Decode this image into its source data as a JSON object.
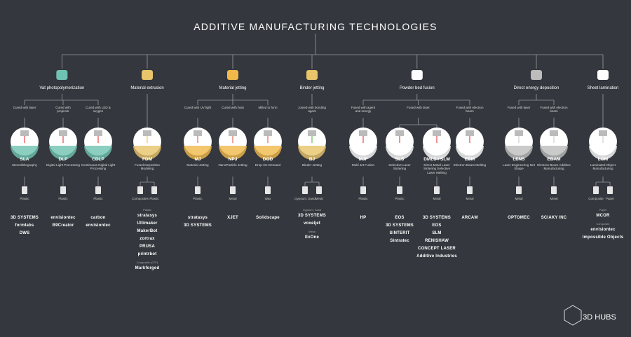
{
  "title": "ADDITIVE MANUFACTURING TECHNOLOGIES",
  "logo": "3D HUBS",
  "categories": [
    {
      "name": "Vat photopolymerization",
      "branches": [
        {
          "label": "Cured with laser",
          "techniques": [
            {
              "name": "SLA",
              "description": "Stereolithography",
              "materials": [
                "Plastic"
              ],
              "brand_groups": [
                {
                  "brands": [
                    "3D SYSTEMS",
                    "formlabs",
                    "DWS"
                  ]
                }
              ]
            }
          ]
        },
        {
          "label": "Cured with projector",
          "techniques": [
            {
              "name": "DLP",
              "description": "Digital Light Processing",
              "materials": [
                "Plastic"
              ],
              "brand_groups": [
                {
                  "brands": [
                    "envisiontec",
                    "B9Creator"
                  ]
                }
              ]
            }
          ]
        },
        {
          "label": "Cured with LED & oxygen",
          "techniques": [
            {
              "name": "CDLP",
              "description": "Continuous Digital Light Processing",
              "materials": [
                "Plastic"
              ],
              "brand_groups": [
                {
                  "brands": [
                    "carbon",
                    "envisiontec"
                  ]
                }
              ]
            }
          ]
        }
      ]
    },
    {
      "name": "Material extrusion",
      "branches": [
        {
          "techniques": [
            {
              "name": "FDM",
              "description": "Fused Deposition Modeling",
              "materials": [
                "Composites",
                "Plastic"
              ],
              "brand_groups": [
                {
                  "label": "Plastic",
                  "brands": [
                    "stratasys",
                    "Ultimaker",
                    "MakerBot",
                    "zortrax",
                    "PRUSA",
                    "printrbot"
                  ]
                },
                {
                  "label": "Composite (CFF)",
                  "brands": [
                    "Markforged"
                  ]
                }
              ]
            }
          ]
        }
      ]
    },
    {
      "name": "Material jetting",
      "branches": [
        {
          "label": "Cured with UV light",
          "techniques": [
            {
              "name": "MJ",
              "description": "Material Jetting",
              "materials": [
                "Plastic"
              ],
              "brand_groups": [
                {
                  "brands": [
                    "stratasys",
                    "3D SYSTEMS"
                  ]
                }
              ]
            }
          ]
        },
        {
          "label": "Cured with heat",
          "techniques": [
            {
              "name": "NPJ",
              "description": "NanoParticle Jetting",
              "materials": [
                "Metal"
              ],
              "brand_groups": [
                {
                  "brands": [
                    "XJET"
                  ]
                }
              ]
            }
          ]
        },
        {
          "label": "Milled to form",
          "techniques": [
            {
              "name": "DOD",
              "description": "Drop-On Demand",
              "materials": [
                "Wax"
              ],
              "brand_groups": [
                {
                  "brands": [
                    "Solidscape"
                  ]
                }
              ]
            }
          ]
        }
      ]
    },
    {
      "name": "Binder jetting",
      "branches": [
        {
          "label": "Joined with bonding agent",
          "techniques": [
            {
              "name": "BJ",
              "description": "Binder Jetting",
              "materials": [
                "Gypsum, Sand",
                "Metal"
              ],
              "brand_groups": [
                {
                  "label": "Gypsum, Sand",
                  "brands": [
                    "3D SYSTEMS",
                    "voxeljet"
                  ]
                },
                {
                  "label": "Metal",
                  "brands": [
                    "ExOne"
                  ]
                }
              ]
            }
          ]
        }
      ]
    },
    {
      "name": "Powder bed fusion",
      "branches": [
        {
          "label": "Fused with agent and energy",
          "techniques": [
            {
              "name": "MJF",
              "description": "Multi Jet Fusion",
              "materials": [
                "Plastic"
              ],
              "brand_groups": [
                {
                  "brands": [
                    "HP"
                  ]
                }
              ]
            }
          ]
        },
        {
          "label": "Fused with laser",
          "techniques": [
            {
              "name": "SLS",
              "description": "Selective Laser Sintering",
              "materials": [
                "Plastic"
              ],
              "brand_groups": [
                {
                  "brands": [
                    "EOS",
                    "3D SYSTEMS",
                    "SINTERIT",
                    "Sintratec"
                  ]
                }
              ]
            },
            {
              "name": "DMLS / SLM",
              "description": "Direct Metal Laser Sintering Selective Laser Melting",
              "materials": [
                "Metal"
              ],
              "brand_groups": [
                {
                  "brands": [
                    "3D SYSTEMS",
                    "EOS",
                    "SLM",
                    "RENISHAW",
                    "CONCEPT LASER",
                    "Additive Industries"
                  ]
                }
              ]
            }
          ]
        },
        {
          "label": "Fused with electron beam",
          "techniques": [
            {
              "name": "EBM",
              "description": "Electron Beam Melting",
              "materials": [
                "Metal"
              ],
              "brand_groups": [
                {
                  "brands": [
                    "ARCAM"
                  ]
                }
              ]
            }
          ]
        }
      ]
    },
    {
      "name": "Direct energy deposition",
      "branches": [
        {
          "label": "Fused with laser",
          "techniques": [
            {
              "name": "LENS",
              "description": "Laser Engineering Net Shape",
              "materials": [
                "Metal"
              ],
              "brand_groups": [
                {
                  "brands": [
                    "OPTOMEC"
                  ]
                }
              ]
            }
          ]
        },
        {
          "label": "Fused with electron beam",
          "techniques": [
            {
              "name": "EBAM",
              "description": "Electron Beam Additive Manufacturing",
              "materials": [
                "Metal"
              ],
              "brand_groups": [
                {
                  "brands": [
                    "SCIAKY INC"
                  ]
                }
              ]
            }
          ]
        }
      ]
    },
    {
      "name": "Sheet lamination",
      "branches": [
        {
          "techniques": [
            {
              "name": "LOM",
              "description": "Laminated Object Manufacturing",
              "materials": [
                "Composite",
                "Paper"
              ],
              "brand_groups": [
                {
                  "label": "Paper",
                  "brands": [
                    "MCOR"
                  ]
                },
                {
                  "label": "Composite",
                  "brands": [
                    "envisiontec",
                    "Impossible Objects"
                  ]
                }
              ]
            }
          ]
        }
      ]
    }
  ]
}
